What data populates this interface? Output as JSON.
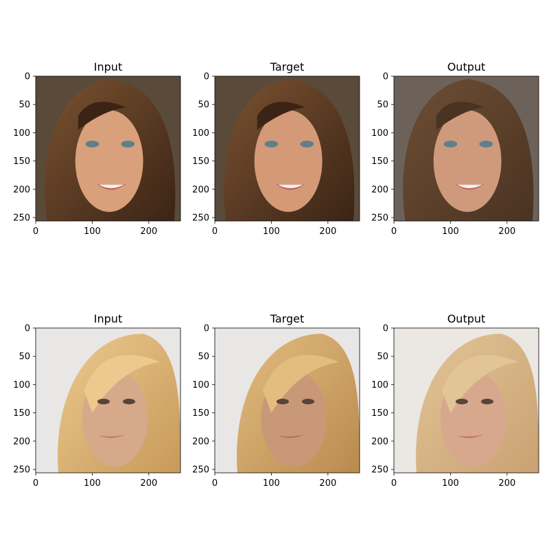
{
  "chart_data": [
    {
      "type": "image",
      "title": "Input",
      "row": 0,
      "col": 0,
      "image_extent": [
        0,
        256,
        256,
        0
      ],
      "xlim": [
        0,
        256
      ],
      "ylim": [
        256,
        0
      ],
      "xticks": [
        0,
        100,
        200
      ],
      "yticks": [
        0,
        50,
        100,
        150,
        200,
        250
      ],
      "content": "face-portrait-dark-hair-original",
      "palette": {
        "bg": "#5a4a3a",
        "hair": "#3b2416",
        "hair_light": "#7a5230",
        "skin": "#d9a07c",
        "lips": "#b9655a"
      }
    },
    {
      "type": "image",
      "title": "Target",
      "row": 0,
      "col": 1,
      "image_extent": [
        0,
        256,
        256,
        0
      ],
      "xlim": [
        0,
        256
      ],
      "ylim": [
        256,
        0
      ],
      "xticks": [
        0,
        100,
        200
      ],
      "yticks": [
        0,
        50,
        100,
        150,
        200,
        250
      ],
      "content": "face-portrait-dark-hair-target",
      "palette": {
        "bg": "#5a4a3a",
        "hair": "#3b2416",
        "hair_light": "#7a5230",
        "skin": "#d49a78",
        "lips": "#b9655a"
      }
    },
    {
      "type": "image",
      "title": "Output",
      "row": 0,
      "col": 2,
      "image_extent": [
        0,
        256,
        256,
        0
      ],
      "xlim": [
        0,
        256
      ],
      "ylim": [
        256,
        0
      ],
      "xticks": [
        0,
        100,
        200
      ],
      "yticks": [
        0,
        50,
        100,
        150,
        200,
        250
      ],
      "content": "face-portrait-dark-hair-generated",
      "palette": {
        "bg": "#6d6259",
        "hair": "#4a3322",
        "hair_light": "#6e4e34",
        "skin": "#cf9a7c",
        "lips": "#c16c5e"
      }
    },
    {
      "type": "image",
      "title": "Input",
      "row": 1,
      "col": 0,
      "image_extent": [
        0,
        256,
        256,
        0
      ],
      "xlim": [
        0,
        256
      ],
      "ylim": [
        256,
        0
      ],
      "xticks": [
        0,
        100,
        200
      ],
      "yticks": [
        0,
        50,
        100,
        150,
        200,
        250
      ],
      "content": "face-portrait-blonde-hair-original",
      "palette": {
        "bg": "#e9e6e6",
        "hair": "#c79a5a",
        "hair_light": "#ecc98e",
        "skin": "#d6a98a",
        "lips": "#c27a6d"
      }
    },
    {
      "type": "image",
      "title": "Target",
      "row": 1,
      "col": 1,
      "image_extent": [
        0,
        256,
        256,
        0
      ],
      "xlim": [
        0,
        256
      ],
      "ylim": [
        256,
        0
      ],
      "xticks": [
        0,
        100,
        200
      ],
      "yticks": [
        0,
        50,
        100,
        150,
        200,
        250
      ],
      "content": "face-portrait-blonde-hair-target",
      "palette": {
        "bg": "#e9e6e6",
        "hair": "#b98a4e",
        "hair_light": "#e3bd80",
        "skin": "#c99878",
        "lips": "#b86e62"
      }
    },
    {
      "type": "image",
      "title": "Output",
      "row": 1,
      "col": 2,
      "image_extent": [
        0,
        256,
        256,
        0
      ],
      "xlim": [
        0,
        256
      ],
      "ylim": [
        256,
        0
      ],
      "xticks": [
        0,
        100,
        200
      ],
      "yticks": [
        0,
        50,
        100,
        150,
        200,
        250
      ],
      "content": "face-portrait-blonde-hair-generated",
      "palette": {
        "bg": "#ebe7e3",
        "hair": "#caa172",
        "hair_light": "#e2c596",
        "skin": "#d8a88e",
        "lips": "#bf7468"
      }
    }
  ]
}
